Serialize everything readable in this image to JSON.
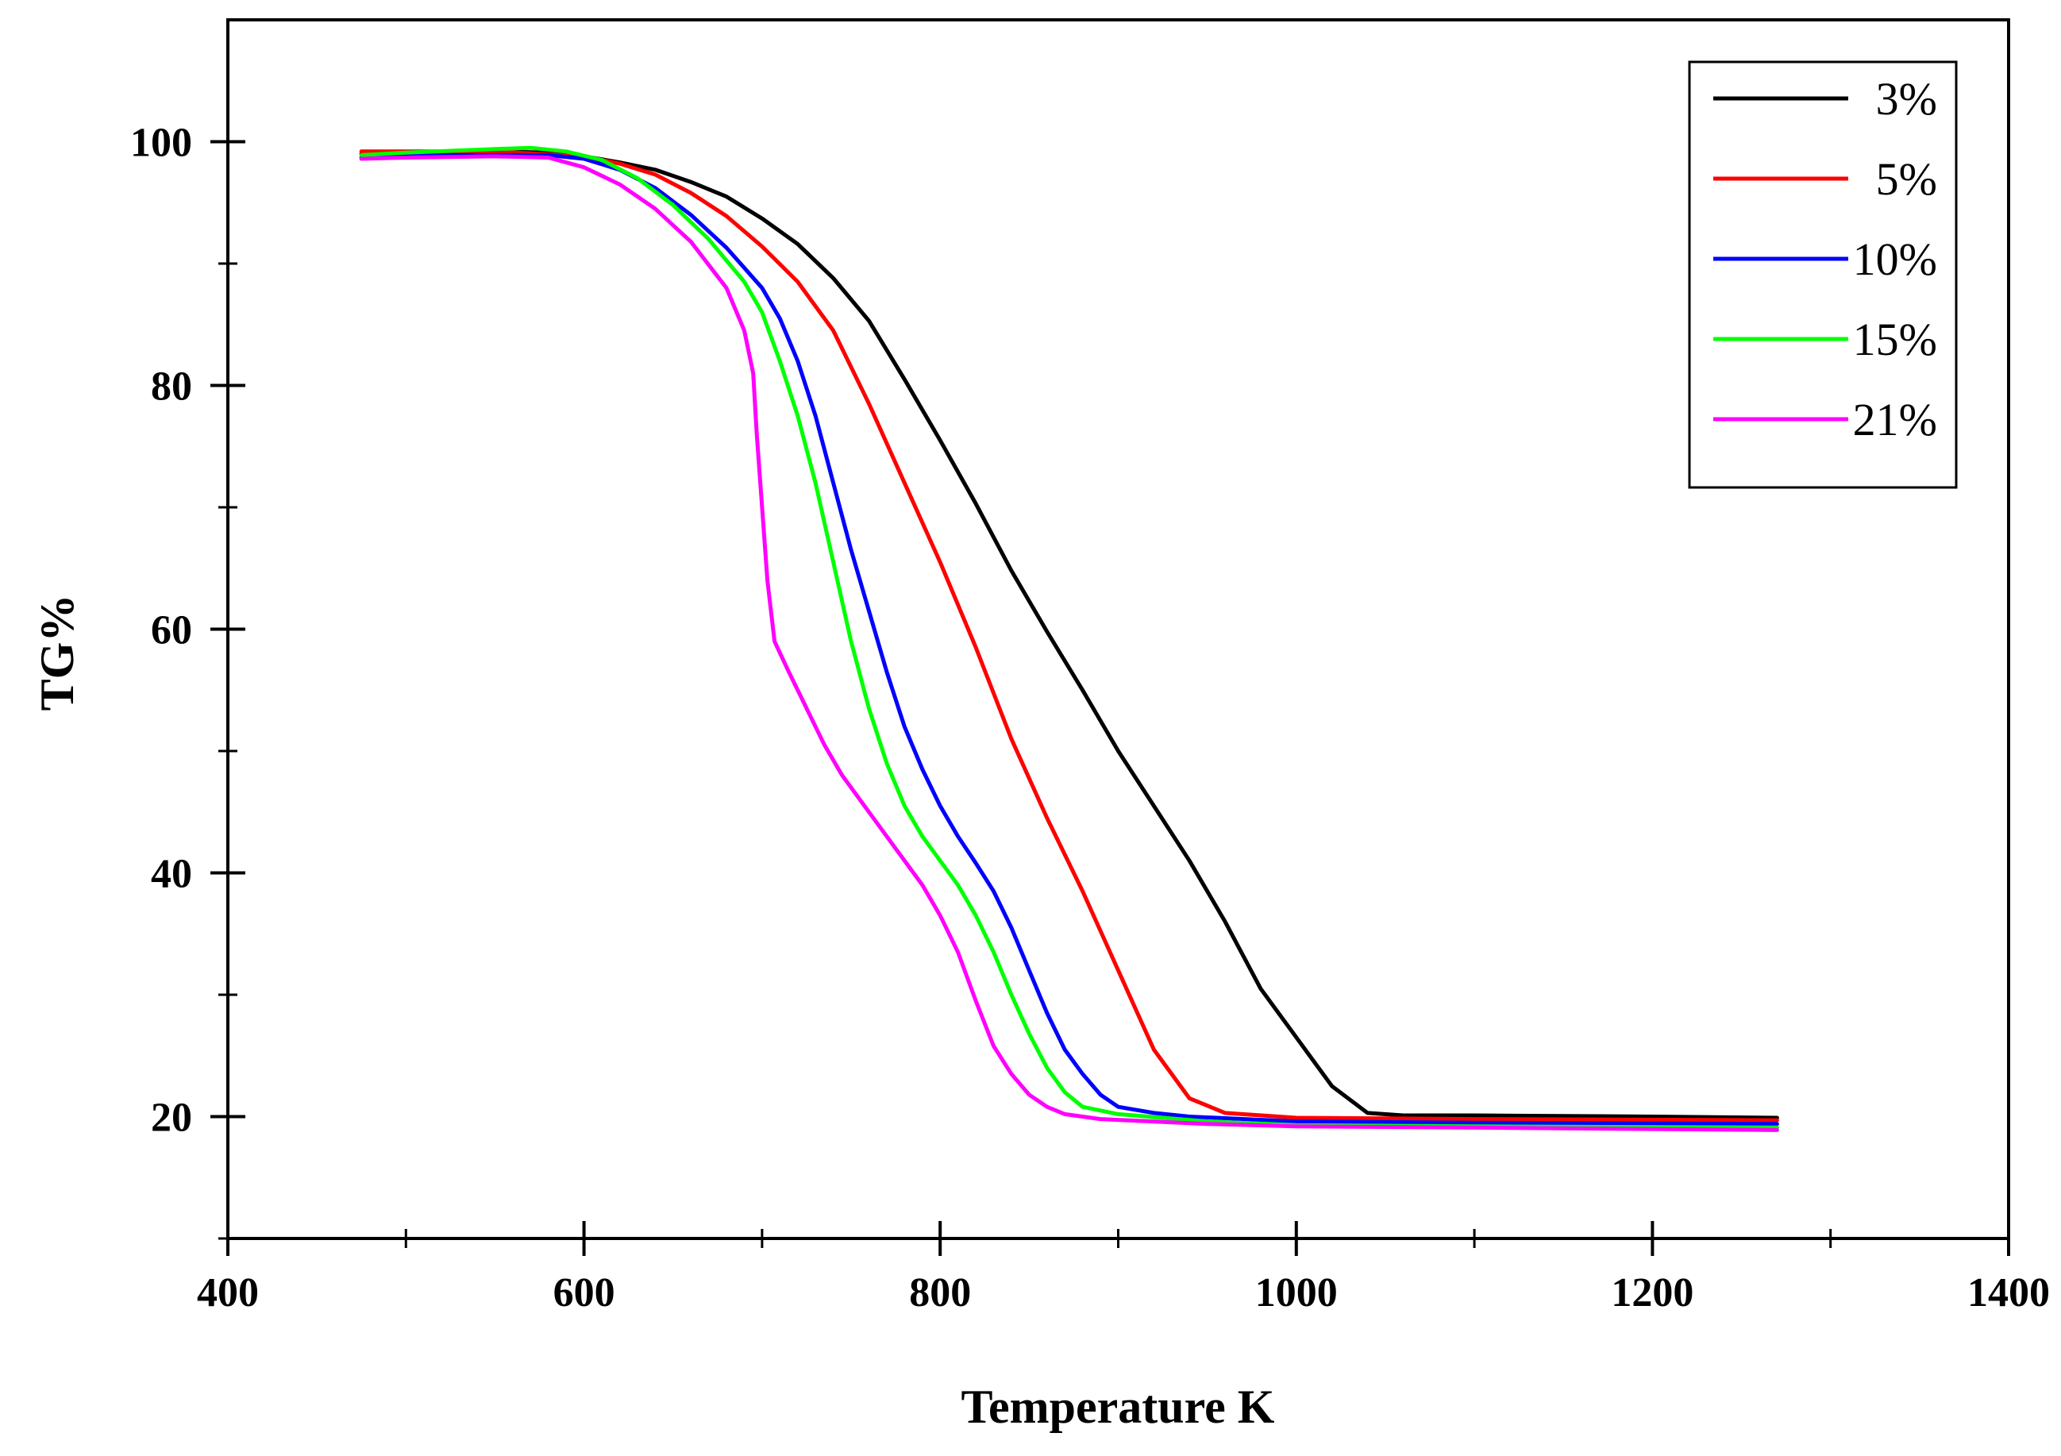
{
  "chart_data": {
    "type": "line",
    "title": "",
    "xlabel": "Temperature K",
    "ylabel": "TG%",
    "xlim": [
      400,
      1400
    ],
    "ylim": [
      10,
      110
    ],
    "x_ticks_major": [
      400,
      600,
      800,
      1000,
      1200,
      1400
    ],
    "x_ticks_minor": [
      500,
      700,
      900,
      1100,
      1300
    ],
    "y_ticks_major": [
      20,
      40,
      60,
      80,
      100
    ],
    "y_ticks_minor": [
      10,
      30,
      50,
      70,
      90
    ],
    "x_tick_labels": [
      "400",
      "600",
      "800",
      "1000",
      "1200",
      "1400"
    ],
    "y_tick_labels": [
      "20",
      "40",
      "60",
      "80",
      "100"
    ],
    "grid": false,
    "legend_position": "top-right",
    "series": [
      {
        "name": "3%",
        "color": "#000000",
        "points": [
          [
            475,
            99
          ],
          [
            500,
            99.1
          ],
          [
            550,
            99.2
          ],
          [
            580,
            99.1
          ],
          [
            600,
            98.8
          ],
          [
            620,
            98.3
          ],
          [
            640,
            97.7
          ],
          [
            660,
            96.7
          ],
          [
            680,
            95.5
          ],
          [
            700,
            93.7
          ],
          [
            720,
            91.6
          ],
          [
            740,
            88.8
          ],
          [
            760,
            85.3
          ],
          [
            780,
            80.5
          ],
          [
            800,
            75.5
          ],
          [
            820,
            70.3
          ],
          [
            840,
            64.8
          ],
          [
            860,
            59.8
          ],
          [
            880,
            55.0
          ],
          [
            900,
            50.0
          ],
          [
            920,
            45.5
          ],
          [
            940,
            41.0
          ],
          [
            960,
            36.0
          ],
          [
            980,
            30.5
          ],
          [
            1000,
            26.5
          ],
          [
            1020,
            22.5
          ],
          [
            1040,
            20.3
          ],
          [
            1060,
            20.1
          ],
          [
            1100,
            20.1
          ],
          [
            1200,
            20.0
          ],
          [
            1270,
            19.9
          ]
        ]
      },
      {
        "name": "5%",
        "color": "#ff0000",
        "points": [
          [
            475,
            99.2
          ],
          [
            500,
            99.2
          ],
          [
            550,
            99.2
          ],
          [
            600,
            98.8
          ],
          [
            620,
            98.2
          ],
          [
            640,
            97.3
          ],
          [
            660,
            95.8
          ],
          [
            680,
            93.9
          ],
          [
            700,
            91.4
          ],
          [
            720,
            88.5
          ],
          [
            740,
            84.5
          ],
          [
            760,
            78.5
          ],
          [
            780,
            72.0
          ],
          [
            800,
            65.5
          ],
          [
            820,
            58.5
          ],
          [
            840,
            51.0
          ],
          [
            860,
            44.5
          ],
          [
            880,
            38.5
          ],
          [
            900,
            32.0
          ],
          [
            920,
            25.5
          ],
          [
            940,
            21.5
          ],
          [
            960,
            20.3
          ],
          [
            1000,
            19.9
          ],
          [
            1100,
            19.8
          ],
          [
            1270,
            19.7
          ]
        ]
      },
      {
        "name": "10%",
        "color": "#0000ff",
        "points": [
          [
            475,
            98.7
          ],
          [
            500,
            98.9
          ],
          [
            550,
            98.9
          ],
          [
            580,
            98.9
          ],
          [
            600,
            98.6
          ],
          [
            620,
            97.7
          ],
          [
            640,
            96.2
          ],
          [
            660,
            94.0
          ],
          [
            680,
            91.3
          ],
          [
            700,
            88.0
          ],
          [
            710,
            85.5
          ],
          [
            720,
            82.0
          ],
          [
            730,
            77.5
          ],
          [
            740,
            72.0
          ],
          [
            750,
            66.5
          ],
          [
            760,
            61.5
          ],
          [
            770,
            56.5
          ],
          [
            780,
            52.0
          ],
          [
            790,
            48.5
          ],
          [
            800,
            45.5
          ],
          [
            810,
            43.0
          ],
          [
            820,
            40.8
          ],
          [
            830,
            38.5
          ],
          [
            840,
            35.5
          ],
          [
            850,
            32.0
          ],
          [
            860,
            28.5
          ],
          [
            870,
            25.5
          ],
          [
            880,
            23.5
          ],
          [
            890,
            21.8
          ],
          [
            900,
            20.8
          ],
          [
            920,
            20.3
          ],
          [
            940,
            20.0
          ],
          [
            1000,
            19.6
          ],
          [
            1100,
            19.5
          ],
          [
            1270,
            19.4
          ]
        ]
      },
      {
        "name": "15%",
        "color": "#00ff00",
        "points": [
          [
            475,
            98.9
          ],
          [
            500,
            99.1
          ],
          [
            550,
            99.4
          ],
          [
            570,
            99.5
          ],
          [
            590,
            99.2
          ],
          [
            610,
            98.5
          ],
          [
            630,
            97.0
          ],
          [
            650,
            94.8
          ],
          [
            670,
            92.0
          ],
          [
            690,
            88.5
          ],
          [
            700,
            86.0
          ],
          [
            710,
            82.0
          ],
          [
            720,
            77.5
          ],
          [
            730,
            72.0
          ],
          [
            740,
            65.5
          ],
          [
            750,
            59.0
          ],
          [
            760,
            53.5
          ],
          [
            770,
            49.0
          ],
          [
            780,
            45.5
          ],
          [
            790,
            43.0
          ],
          [
            800,
            41.0
          ],
          [
            810,
            39.0
          ],
          [
            820,
            36.5
          ],
          [
            830,
            33.5
          ],
          [
            840,
            30.0
          ],
          [
            850,
            26.8
          ],
          [
            860,
            24.0
          ],
          [
            870,
            22.0
          ],
          [
            880,
            20.8
          ],
          [
            900,
            20.2
          ],
          [
            950,
            19.6
          ],
          [
            1000,
            19.3
          ],
          [
            1100,
            19.2
          ],
          [
            1270,
            19.1
          ]
        ]
      },
      {
        "name": "21%",
        "color": "#ff00ff",
        "points": [
          [
            475,
            98.6
          ],
          [
            500,
            98.7
          ],
          [
            550,
            98.8
          ],
          [
            580,
            98.7
          ],
          [
            600,
            97.9
          ],
          [
            620,
            96.5
          ],
          [
            640,
            94.5
          ],
          [
            660,
            91.8
          ],
          [
            680,
            88.0
          ],
          [
            690,
            84.5
          ],
          [
            695,
            81.0
          ],
          [
            697,
            76.0
          ],
          [
            700,
            70.0
          ],
          [
            703,
            64.0
          ],
          [
            707,
            59.0
          ],
          [
            715,
            56.5
          ],
          [
            725,
            53.5
          ],
          [
            735,
            50.5
          ],
          [
            745,
            48.0
          ],
          [
            760,
            45.0
          ],
          [
            775,
            42.0
          ],
          [
            790,
            39.0
          ],
          [
            800,
            36.5
          ],
          [
            810,
            33.5
          ],
          [
            820,
            29.5
          ],
          [
            830,
            25.8
          ],
          [
            840,
            23.5
          ],
          [
            850,
            21.8
          ],
          [
            860,
            20.8
          ],
          [
            870,
            20.2
          ],
          [
            890,
            19.8
          ],
          [
            950,
            19.4
          ],
          [
            1000,
            19.2
          ],
          [
            1100,
            19.1
          ],
          [
            1270,
            18.9
          ]
        ]
      }
    ]
  }
}
